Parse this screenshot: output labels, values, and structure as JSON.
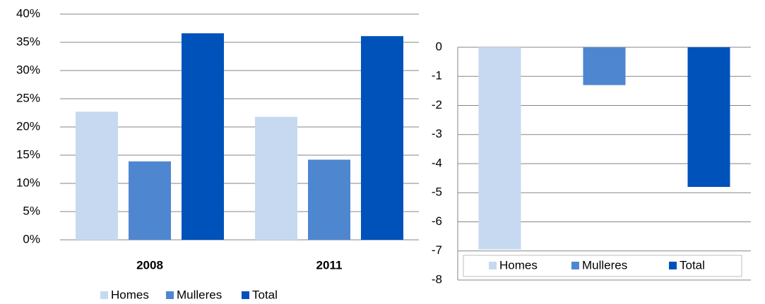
{
  "chart_data": [
    {
      "type": "bar",
      "categories": [
        "2008",
        "2011"
      ],
      "series": [
        {
          "name": "Homes",
          "color": "#c6d9f1",
          "values": [
            22.7,
            21.8
          ]
        },
        {
          "name": "Mulleres",
          "color": "#4f86d0",
          "values": [
            13.9,
            14.2
          ]
        },
        {
          "name": "Total",
          "color": "#0052bb",
          "values": [
            36.6,
            36.1
          ]
        }
      ],
      "ylim": [
        0,
        40
      ],
      "yticks": [
        {
          "value": 0,
          "label": "0%"
        },
        {
          "value": 5,
          "label": "5%"
        },
        {
          "value": 10,
          "label": "10%"
        },
        {
          "value": 15,
          "label": "15%"
        },
        {
          "value": 20,
          "label": "20%"
        },
        {
          "value": 25,
          "label": "25%"
        },
        {
          "value": 30,
          "label": "30%"
        },
        {
          "value": 35,
          "label": "35%"
        },
        {
          "value": 40,
          "label": "40%"
        }
      ],
      "grid": true,
      "legend": "bottom"
    },
    {
      "type": "bar",
      "categories": [
        null
      ],
      "series": [
        {
          "name": "Homes",
          "color": "#c6d9f1",
          "values": [
            -6.95
          ]
        },
        {
          "name": "Mulleres",
          "color": "#4f86d0",
          "values": [
            -1.3
          ]
        },
        {
          "name": "Total",
          "color": "#0052bb",
          "values": [
            -4.8
          ]
        }
      ],
      "ylim": [
        -8,
        0
      ],
      "yticks": [
        0,
        -1,
        -2,
        -3,
        -4,
        -5,
        -6,
        -7,
        -8
      ],
      "grid": true,
      "legend": "bottom-inside"
    }
  ]
}
